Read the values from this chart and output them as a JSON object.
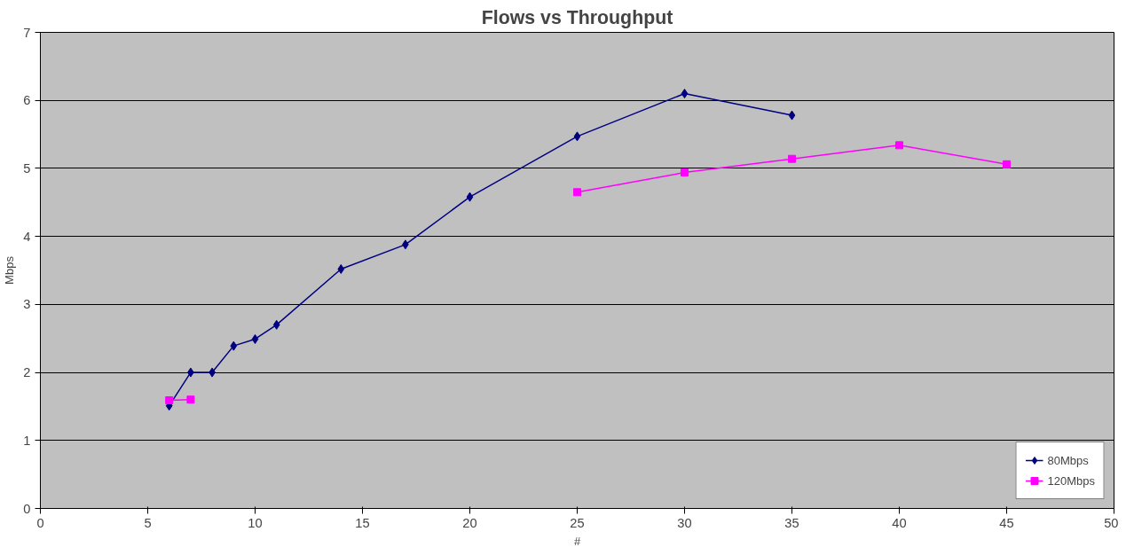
{
  "chart_data": {
    "type": "line",
    "title": "Flows vs Throughput",
    "xlabel": "#",
    "ylabel": "Mbps",
    "xlim": [
      0,
      50
    ],
    "xticks": [
      0,
      5,
      10,
      15,
      20,
      25,
      30,
      35,
      40,
      45,
      50
    ],
    "ylim": [
      0,
      7
    ],
    "yticks": [
      0,
      1,
      2,
      3,
      4,
      5,
      6,
      7
    ],
    "grid": "y",
    "legend": "bottom right",
    "series": [
      {
        "name": "80Mbps",
        "color": "#000080",
        "marker": "diamond",
        "x": [
          6,
          7,
          8,
          9,
          10,
          11,
          14,
          17,
          20,
          25,
          30,
          35
        ],
        "values": [
          1.51,
          2.0,
          2.0,
          2.39,
          2.49,
          2.7,
          3.52,
          3.88,
          4.58,
          5.47,
          6.1,
          5.78
        ]
      },
      {
        "name": "120Mbps",
        "color": "#ff00ff",
        "marker": "square",
        "x": [
          6,
          7,
          16,
          25,
          30,
          35,
          40,
          45
        ],
        "values": [
          1.59,
          1.6,
          null,
          4.65,
          4.94,
          5.14,
          5.34,
          5.06
        ]
      }
    ]
  }
}
